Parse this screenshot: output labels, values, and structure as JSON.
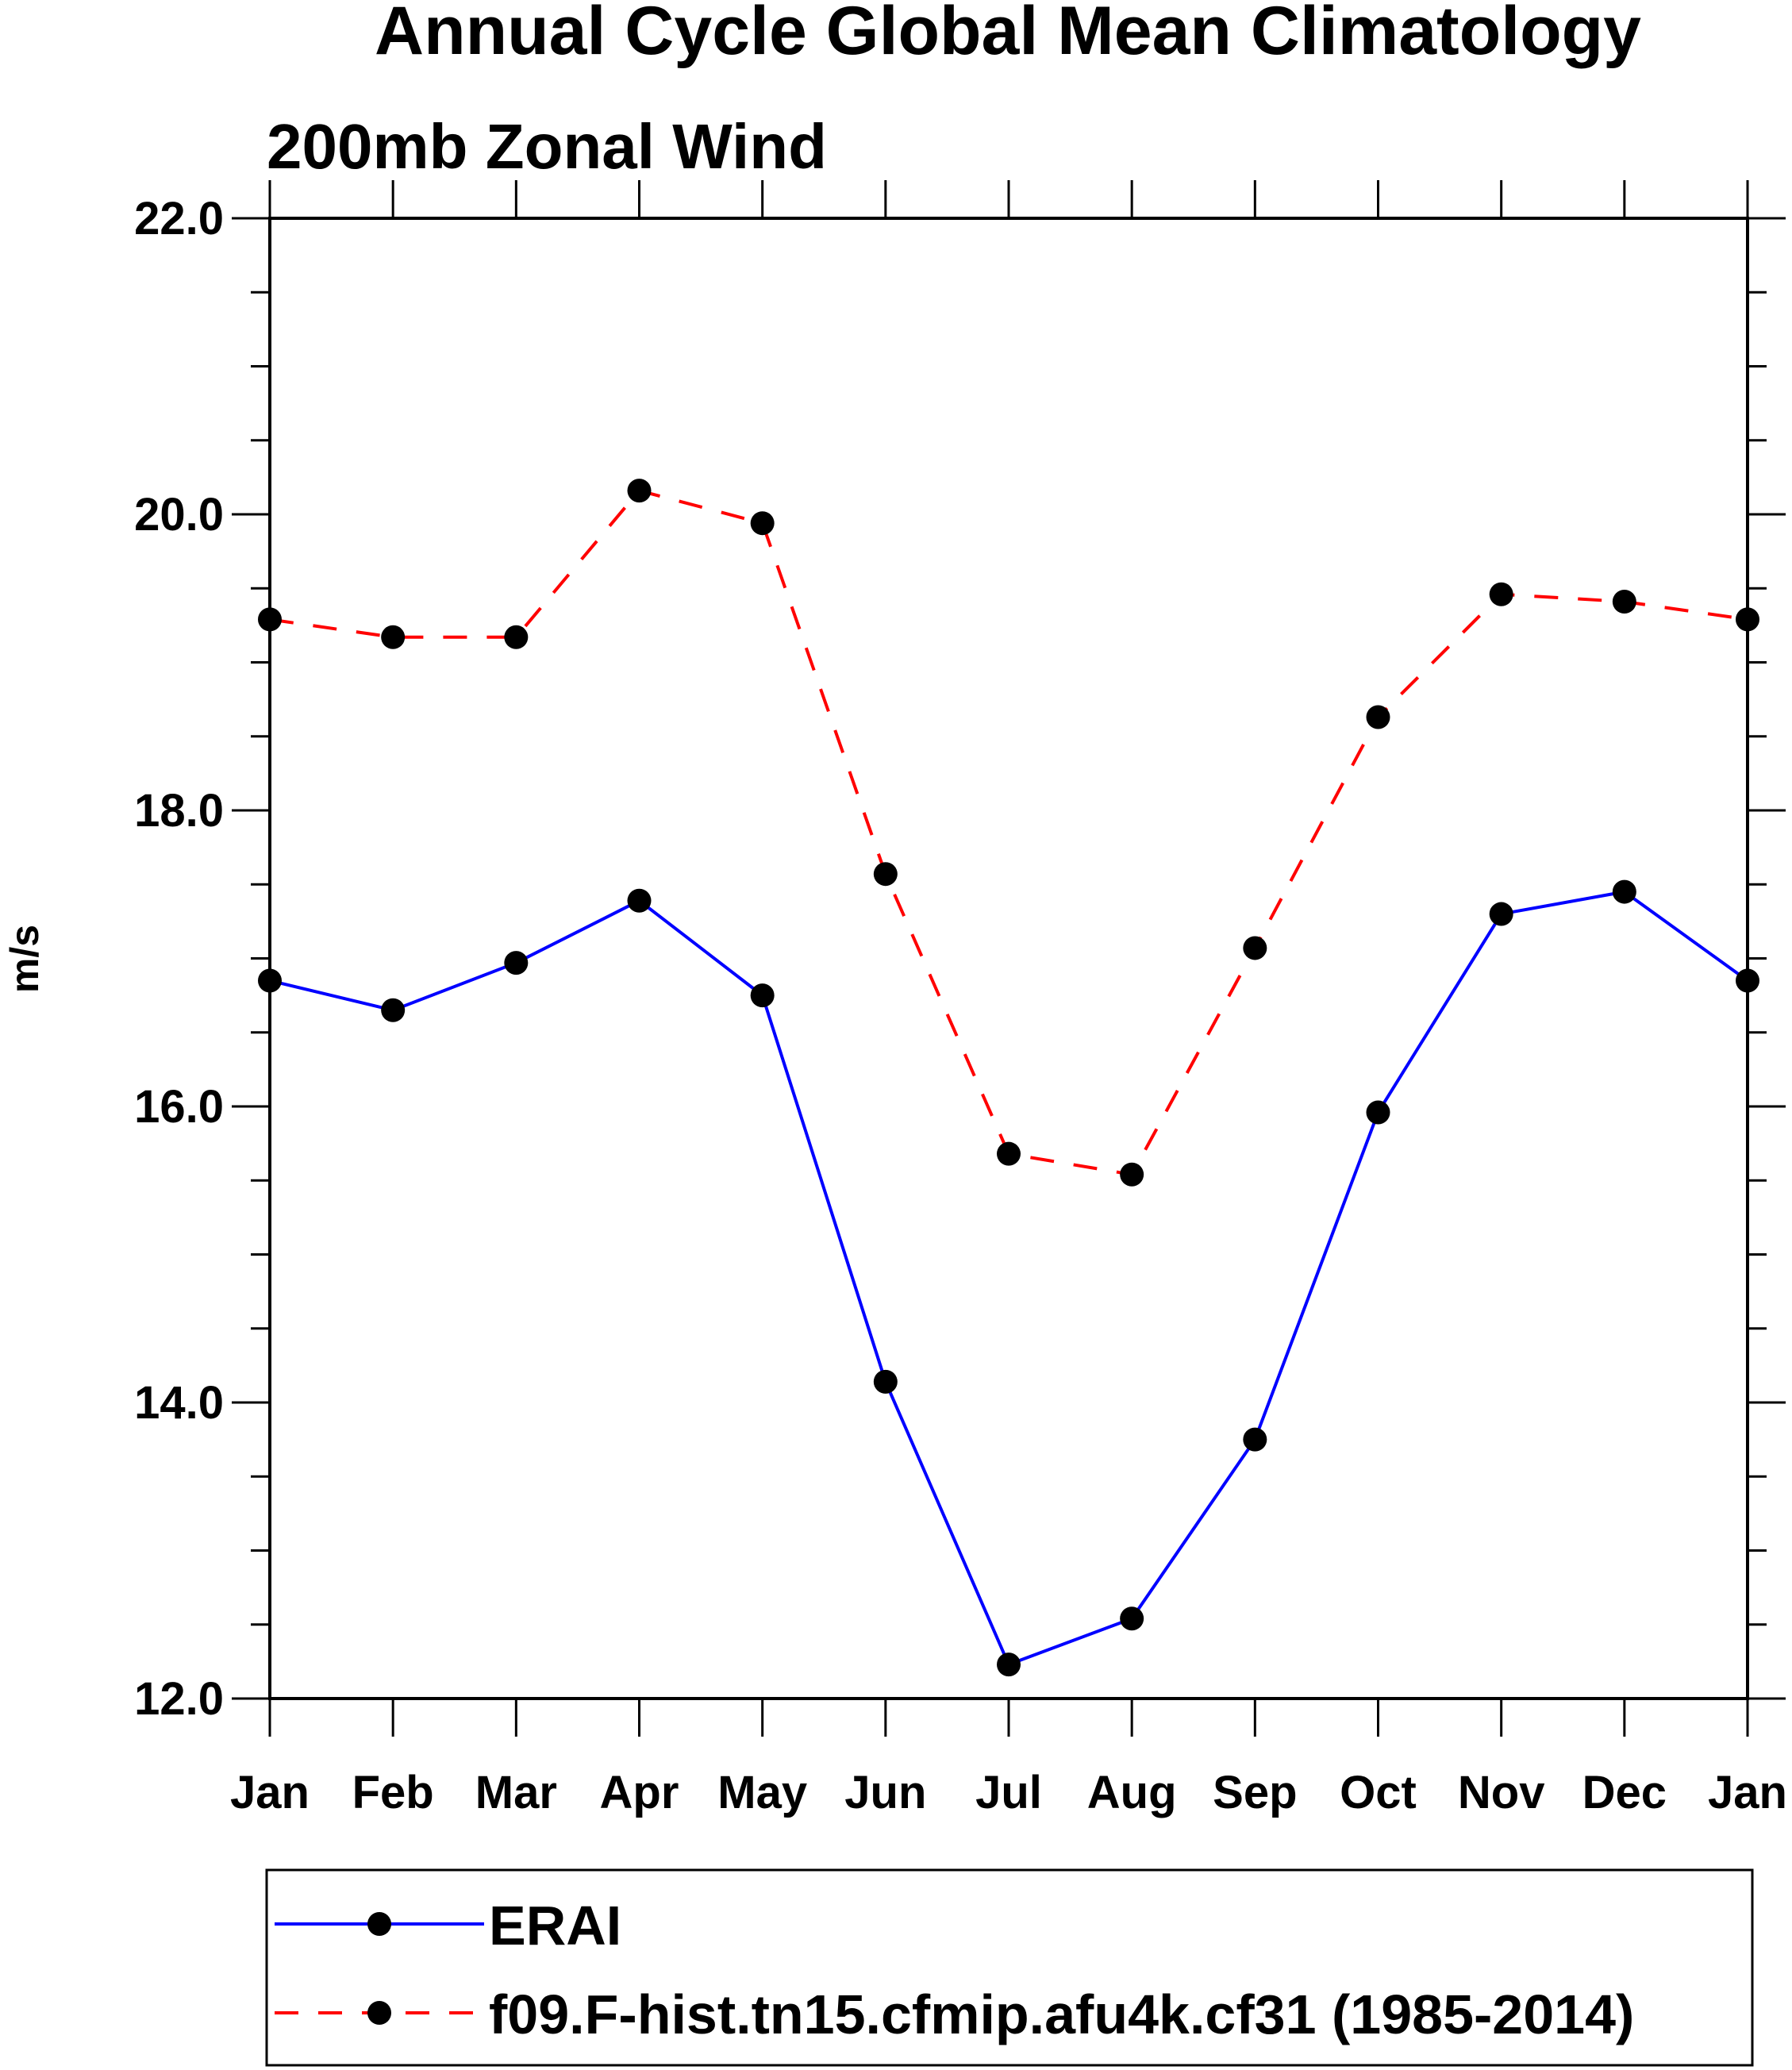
{
  "chart_data": {
    "type": "line",
    "title": "Annual Cycle Global Mean Climatology",
    "subtitle": "200mb Zonal Wind",
    "xlabel": "",
    "ylabel": "m/s",
    "categories": [
      "Jan",
      "Feb",
      "Mar",
      "Apr",
      "May",
      "Jun",
      "Jul",
      "Aug",
      "Sep",
      "Oct",
      "Nov",
      "Dec",
      "Jan"
    ],
    "ylim": [
      12.0,
      22.0
    ],
    "yticks": [
      "12.0",
      "14.0",
      "16.0",
      "18.0",
      "20.0",
      "22.0"
    ],
    "ytick_values": [
      12,
      14,
      16,
      18,
      20,
      22
    ],
    "y_minor_step": 0.5,
    "grid": false,
    "legend_position": "bottom",
    "series": [
      {
        "name": "ERAI",
        "color": "#0000ff",
        "line_style": "solid",
        "marker": "filled-circle",
        "values": [
          16.85,
          16.65,
          16.97,
          17.39,
          16.75,
          14.14,
          12.23,
          12.54,
          13.75,
          15.96,
          17.3,
          17.45,
          16.85
        ]
      },
      {
        "name": "f09.F-hist.tn15.cfmip.afu4k.cf31 (1985-2014)",
        "color": "#ff0000",
        "line_style": "dashed",
        "marker": "filled-circle",
        "values": [
          19.29,
          19.17,
          19.17,
          20.16,
          19.94,
          17.57,
          15.68,
          15.54,
          17.07,
          18.63,
          19.46,
          19.41,
          19.29
        ]
      }
    ]
  }
}
